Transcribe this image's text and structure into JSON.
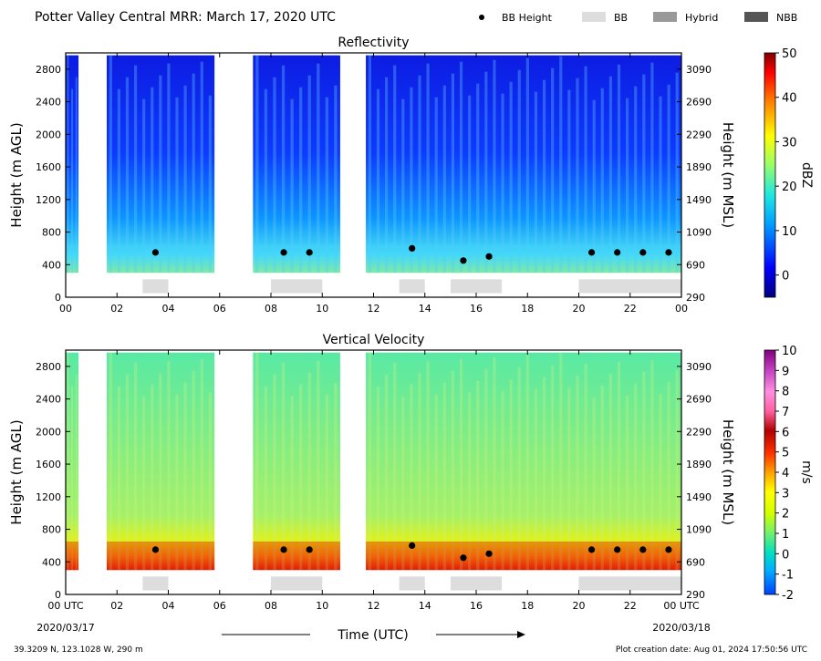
{
  "header": {
    "title": "Potter Valley Central MRR:  March 17, 2020 UTC",
    "legend": [
      {
        "label": "BB Height",
        "kind": "dot",
        "color": "#000000"
      },
      {
        "label": "BB",
        "kind": "rect",
        "color": "#dddddd"
      },
      {
        "label": "Hybrid",
        "kind": "rect",
        "color": "#999999"
      },
      {
        "label": "NBB",
        "kind": "rect",
        "color": "#555555"
      }
    ]
  },
  "footer": {
    "location": "39.3209 N, 123.1028 W, 290 m",
    "creation": "Plot creation date: Aug 01, 2024 17:50:56 UTC",
    "xlabel": "Time (UTC)",
    "start_date": "2020/03/17",
    "end_date": "2020/03/18"
  },
  "chart_data": [
    {
      "type": "heatmap",
      "title": "Reflectivity",
      "ylabel": "Height (m AGL)",
      "ylabel_right": "Height (m MSL)",
      "xlim": [
        0,
        24
      ],
      "ylim": [
        0,
        3000
      ],
      "x_ticks": [
        "00",
        "02",
        "04",
        "06",
        "08",
        "10",
        "12",
        "14",
        "16",
        "18",
        "20",
        "22",
        "00"
      ],
      "y_ticks": [
        0,
        400,
        800,
        1200,
        1600,
        2000,
        2400,
        2800
      ],
      "y_ticks_right": [
        290,
        690,
        1090,
        1490,
        1890,
        2290,
        2690,
        3090
      ],
      "colorbar": {
        "label": "dBZ",
        "min": -5,
        "max": 50,
        "ticks": [
          0,
          10,
          20,
          30,
          40,
          50
        ]
      },
      "echo_periods_hours": [
        [
          0,
          0.5
        ],
        [
          1.6,
          5.8
        ],
        [
          7.3,
          10.7
        ],
        [
          11.7,
          24
        ]
      ],
      "bb_height_points": [
        {
          "x": 3.5,
          "y": 550
        },
        {
          "x": 8.5,
          "y": 550
        },
        {
          "x": 9.5,
          "y": 550
        },
        {
          "x": 13.5,
          "y": 600
        },
        {
          "x": 15.5,
          "y": 450
        },
        {
          "x": 16.5,
          "y": 500
        },
        {
          "x": 20.5,
          "y": 550
        },
        {
          "x": 21.5,
          "y": 550
        },
        {
          "x": 22.5,
          "y": 550
        },
        {
          "x": 23.5,
          "y": 550
        }
      ],
      "bb_periods_hours": [
        [
          3,
          4
        ],
        [
          8,
          10
        ],
        [
          13,
          14
        ],
        [
          15,
          17
        ],
        [
          20,
          24
        ]
      ]
    },
    {
      "type": "heatmap",
      "title": "Vertical Velocity",
      "ylabel": "Height (m AGL)",
      "ylabel_right": "Height (m MSL)",
      "xlim": [
        0,
        24
      ],
      "ylim": [
        0,
        3000
      ],
      "x_ticks": [
        "00 UTC",
        "02",
        "04",
        "06",
        "08",
        "10",
        "12",
        "14",
        "16",
        "18",
        "20",
        "22",
        "00 UTC"
      ],
      "y_ticks": [
        0,
        400,
        800,
        1200,
        1600,
        2000,
        2400,
        2800
      ],
      "y_ticks_right": [
        290,
        690,
        1090,
        1490,
        1890,
        2290,
        2690,
        3090
      ],
      "colorbar": {
        "label": "m/s",
        "min": -2,
        "max": 10,
        "ticks": [
          -2,
          -1,
          0,
          1,
          2,
          3,
          4,
          5,
          6,
          7,
          8,
          9,
          10
        ]
      },
      "echo_periods_hours": [
        [
          0,
          0.5
        ],
        [
          1.6,
          5.8
        ],
        [
          7.3,
          10.7
        ],
        [
          11.7,
          24
        ]
      ],
      "bb_height_points": [
        {
          "x": 3.5,
          "y": 550
        },
        {
          "x": 8.5,
          "y": 550
        },
        {
          "x": 9.5,
          "y": 550
        },
        {
          "x": 13.5,
          "y": 600
        },
        {
          "x": 15.5,
          "y": 450
        },
        {
          "x": 16.5,
          "y": 500
        },
        {
          "x": 20.5,
          "y": 550
        },
        {
          "x": 21.5,
          "y": 550
        },
        {
          "x": 22.5,
          "y": 550
        },
        {
          "x": 23.5,
          "y": 550
        }
      ],
      "bb_periods_hours": [
        [
          3,
          4
        ],
        [
          8,
          10
        ],
        [
          13,
          14
        ],
        [
          15,
          17
        ],
        [
          20,
          24
        ]
      ]
    }
  ]
}
